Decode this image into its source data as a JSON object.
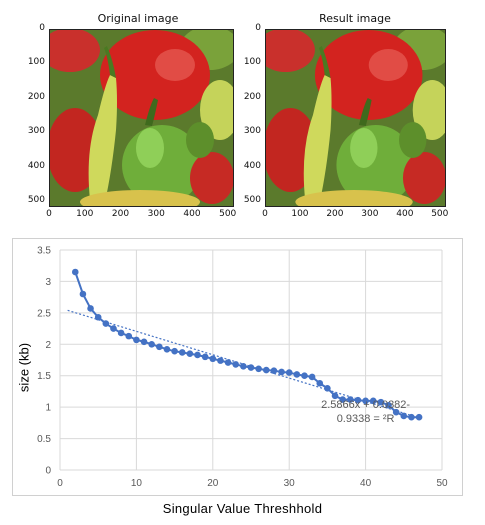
{
  "panels": [
    {
      "title": "Original image"
    },
    {
      "title": "Result image"
    }
  ],
  "image_axes": {
    "x_ticks": [
      "0",
      "100",
      "200",
      "300",
      "400",
      "500"
    ],
    "y_ticks": [
      "0",
      "100",
      "200",
      "300",
      "400",
      "500"
    ]
  },
  "chart_data": [
    {
      "type": "image",
      "title": "Original image",
      "xlim": [
        0,
        512
      ],
      "ylim": [
        512,
        0
      ],
      "x_ticks": [
        0,
        100,
        200,
        300,
        400,
        500
      ],
      "y_ticks": [
        0,
        100,
        200,
        300,
        400,
        500
      ]
    },
    {
      "type": "image",
      "title": "Result image",
      "xlim": [
        0,
        512
      ],
      "ylim": [
        512,
        0
      ],
      "x_ticks": [
        0,
        100,
        200,
        300,
        400,
        500
      ],
      "y_ticks": [
        0,
        100,
        200,
        300,
        400,
        500
      ]
    },
    {
      "type": "line",
      "xlabel": "Singular Value Threshhold",
      "ylabel": "size (kb)",
      "xlim": [
        0,
        50
      ],
      "ylim": [
        0,
        3.5
      ],
      "x_ticks": [
        0,
        10,
        20,
        30,
        40,
        50
      ],
      "y_ticks": [
        0,
        0.5,
        1,
        1.5,
        2,
        2.5,
        3,
        3.5
      ],
      "grid": true,
      "series": [
        {
          "color": "#4472c4",
          "x": [
            2,
            3,
            4,
            5,
            6,
            7,
            8,
            9,
            10,
            11,
            12,
            13,
            14,
            15,
            16,
            17,
            18,
            19,
            20,
            21,
            22,
            23,
            24,
            25,
            26,
            27,
            28,
            29,
            30,
            31,
            32,
            33,
            34,
            35,
            36,
            37,
            38,
            39,
            40,
            41,
            42,
            43,
            44,
            45,
            46,
            47
          ],
          "y": [
            3.15,
            2.8,
            2.57,
            2.43,
            2.33,
            2.25,
            2.18,
            2.13,
            2.07,
            2.04,
            2.0,
            1.96,
            1.92,
            1.89,
            1.87,
            1.85,
            1.83,
            1.8,
            1.77,
            1.74,
            1.71,
            1.68,
            1.65,
            1.63,
            1.61,
            1.59,
            1.58,
            1.56,
            1.55,
            1.52,
            1.5,
            1.48,
            1.38,
            1.3,
            1.18,
            1.12,
            1.12,
            1.11,
            1.1,
            1.1,
            1.08,
            1.03,
            0.92,
            0.86,
            0.84,
            0.84
          ]
        }
      ],
      "trendline": {
        "color": "#4472c4",
        "style": "dotted",
        "x": [
          1,
          47
        ],
        "y": [
          2.54,
          0.83
        ]
      },
      "annotations": [
        {
          "text": "2.5866x + 0.0382-",
          "x": 40,
          "y": 0.99
        },
        {
          "text": "0.9338 = ²R",
          "x": 40,
          "y": 0.76
        }
      ]
    }
  ]
}
